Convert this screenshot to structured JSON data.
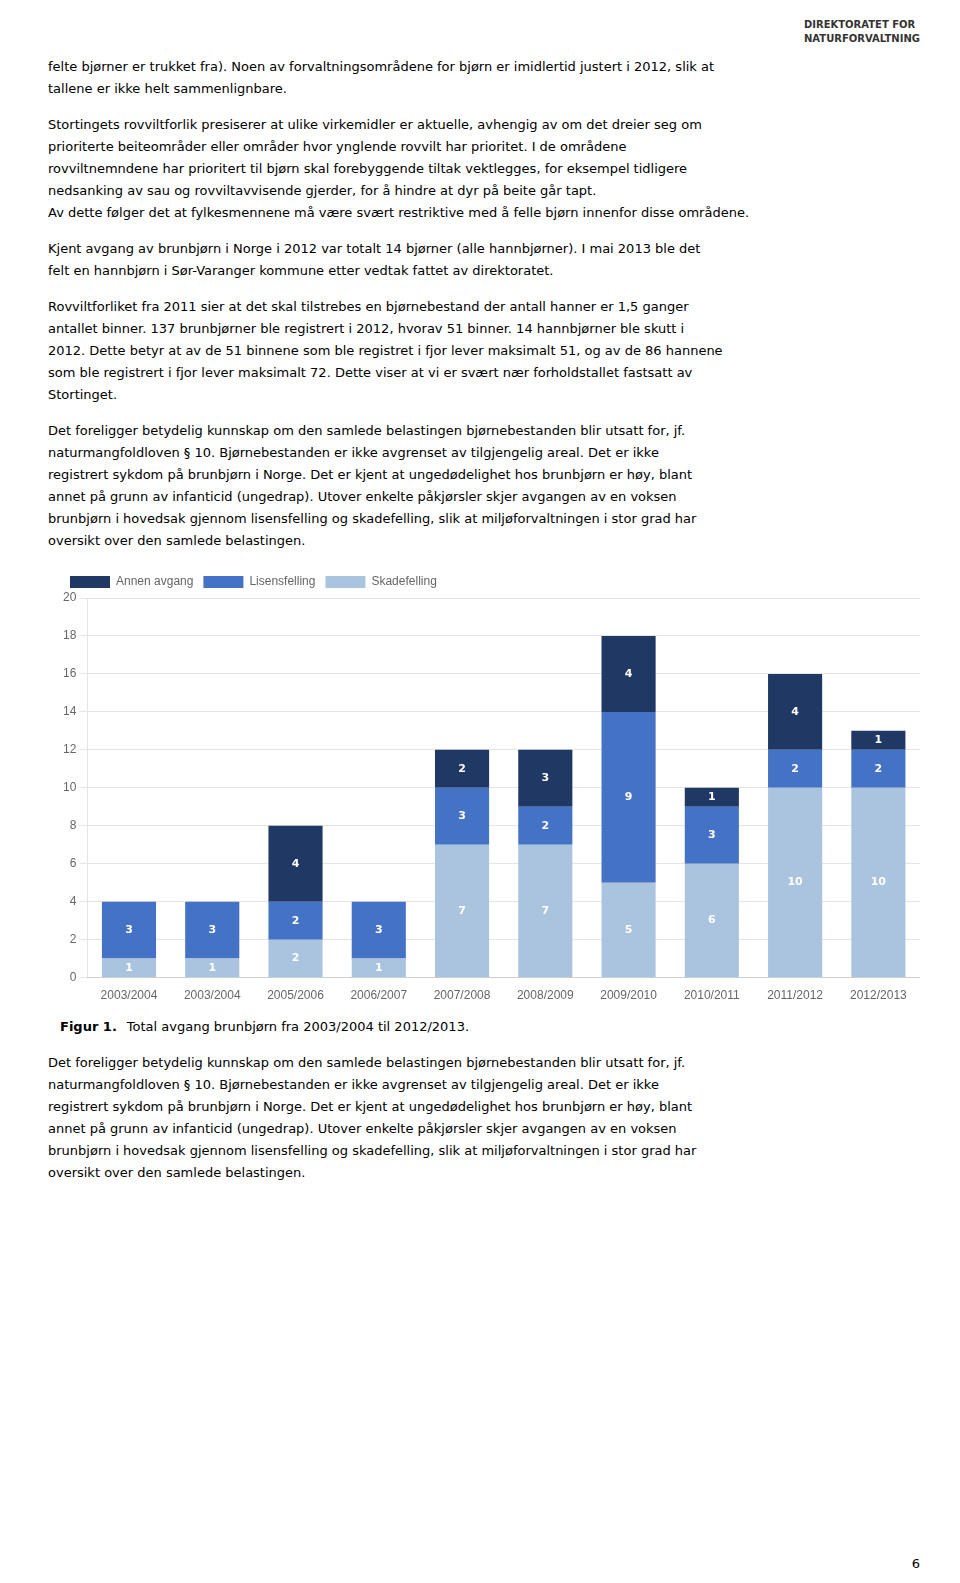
{
  "page_text": [
    [
      "felte bjørner er trukket fra). Noen av forvaltningsområdene for bjørn er imidlertid justert i 2012, slik at",
      "tallene er ikke helt sammenlignbare."
    ],
    [
      "Stortingets rovviltforlik presiserer at ulike virkemidler er aktuelle, avhengig av om det dreier seg om",
      "prioriterte beiteområder eller områder hvor ynglende rovvilt har prioritet. I de områdene",
      "rovviltnemndene har prioritert til bjørn skal forebyggende tiltak vektlegges, for eksempel tidligere",
      "nedsanking av sau og rovviltavvisende gjerder, for å hindre at dyr på beite går tapt.",
      "Av dette følger det at fylkesmennene må være svært restriktive med å felle bjørn innenfor disse områdene."
    ],
    [
      "Kjent avgang av brunbjørn i Norge i 2012 var totalt 14 bjørner (alle hannbjørner). I mai 2013 ble det",
      "felt en hannbjørn i Sør-Varanger kommune etter vedtak fattet av direktoratet."
    ],
    [
      "Rovviltforliket fra 2011 sier at det skal tilstrebes en bjørnebestand der antall hanner er 1,5 ganger",
      "antallet binner. 137 brunbjørner ble registrert i 2012, hvorav 51 binner. 14 hannbjørner ble skutt i",
      "2012. Dette betyr at av de 51 binnene som ble registret i fjor lever maksimalt 51, og av de 86 hannene",
      "som ble registrert i fjor lever maksimalt 72. Dette viser at vi er svært nær forholdstallet fastsatt av",
      "Stortinget."
    ],
    [
      "Det foreligger betydelig kunnskap om den samlede belastingen bjørnebestanden blir utsatt for, jf.",
      "naturmangfoldloven § 10. Bjørnebestanden er ikke avgrenset av tilgjengelig areal. Det er ikke",
      "registrert sykdom på brunbjørn i Norge. Det er kjent at ungedødelighet hos brunbjørn er høy, blant",
      "annet på grunn av infanticid (ungedrap). Utover enkelte påkjørsler skjer avgangen av en voksen",
      "brunbjørn i hovedsak gjennom lisensfelling og skadefelling, slik at miljøforvaltningen i stor grad har",
      "oversikt over den samlede belastingen."
    ]
  ],
  "logo_text": [
    "DIREKTORATET FOR",
    "NATURFORVALTNING"
  ],
  "chart_data": {
    "type": "bar",
    "stacked": true,
    "categories": [
      "2003/2004",
      "2003/2004",
      "2005/2006",
      "2006/2007",
      "2007/2008",
      "2008/2009",
      "2009/2010",
      "2010/2011",
      "2011/2012",
      "2012/2013"
    ],
    "series": [
      {
        "name": "Skadefelling",
        "color": "#aac4e0",
        "values": [
          1,
          1,
          2,
          1,
          7,
          7,
          5,
          6,
          10,
          10
        ]
      },
      {
        "name": "Lisensfelling",
        "color": "#4472c4",
        "values": [
          3,
          3,
          2,
          3,
          3,
          2,
          9,
          3,
          2,
          2
        ]
      },
      {
        "name": "Annen avgang",
        "color": "#1f3864",
        "values": [
          0,
          0,
          4,
          0,
          2,
          3,
          4,
          1,
          4,
          1
        ]
      }
    ],
    "ylim": [
      0,
      20
    ],
    "yticks": [
      0,
      2,
      4,
      6,
      8,
      10,
      12,
      14,
      16,
      18,
      20
    ],
    "grid": true,
    "legend": "upper left",
    "data_labels": true
  },
  "caption": {
    "label": "Figur 1.",
    "text": "Total avgang brunbjørn fra 2003/2004 til 2012/2013."
  },
  "bottom_text": [
    "Det foreligger betydelig kunnskap om den samlede belastingen bjørnebestanden blir utsatt for, jf.",
    "naturmangfoldloven § 10. Bjørnebestanden er ikke avgrenset av tilgjengelig areal. Det er ikke",
    "registrert sykdom på brunbjørn i Norge. Det er kjent at ungedødelighet hos brunbjørn er høy, blant",
    "annet på grunn av infanticid (ungedrap). Utover enkelte påkjørsler skjer avgangen av en voksen",
    "brunbjørn i hovedsak gjennom lisensfelling og skadefelling, slik at miljøforvaltningen i stor grad har",
    "oversikt over den samlede belastingen."
  ],
  "page_number": "6"
}
